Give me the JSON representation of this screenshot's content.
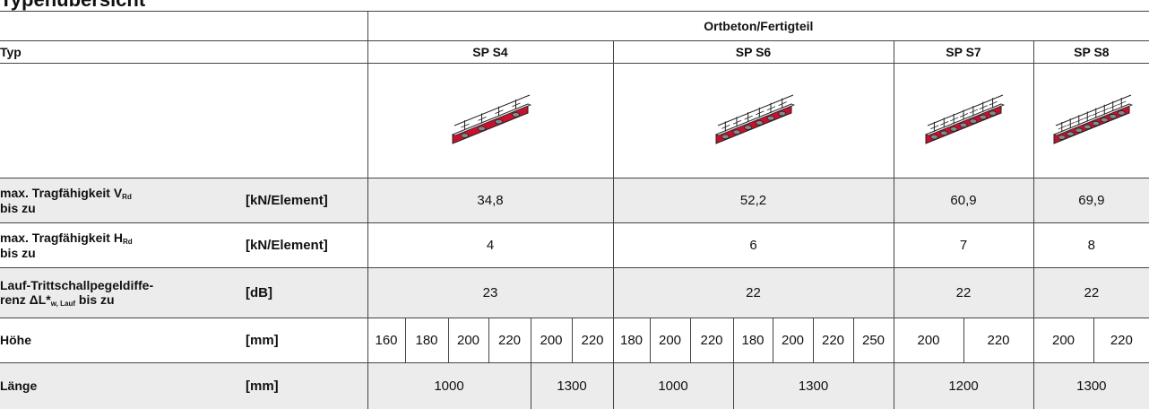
{
  "title": "Typenübersicht",
  "table": {
    "group_header": "Ortbeton/Fertigteil",
    "type_label": "Typ",
    "types": [
      "SP S4",
      "SP S6",
      "SP S7",
      "SP S8"
    ],
    "rows": [
      {
        "label": "max. Tragfähigkeit V",
        "label_sub": "Rd",
        "label_line2": "bis zu",
        "unit": "[kN/Element]",
        "values": [
          "34,8",
          "52,2",
          "60,9",
          "69,9"
        ]
      },
      {
        "label": "max. Tragfähigkeit H",
        "label_sub": "Rd",
        "label_line2": "bis zu",
        "unit": "[kN/Element]",
        "values": [
          "4",
          "6",
          "7",
          "8"
        ]
      },
      {
        "label": "Lauf-Trittschallpegeldiffe-",
        "label_line2": "renz ΔL*",
        "label_sub": "w, Lauf",
        "label_tail": " bis zu",
        "unit": "[dB]",
        "values": [
          "23",
          "22",
          "22",
          "22"
        ]
      },
      {
        "label": "Höhe",
        "unit": "[mm]",
        "values": [
          "160",
          "180",
          "200",
          "220",
          "200",
          "220",
          "180",
          "200",
          "220",
          "180",
          "200",
          "220",
          "250",
          "200",
          "220",
          "200",
          "220"
        ]
      },
      {
        "label": "Länge",
        "unit": "[mm]",
        "values": [
          "1000",
          "1300",
          "1000",
          "1300",
          "1200",
          "1300"
        ]
      }
    ]
  }
}
